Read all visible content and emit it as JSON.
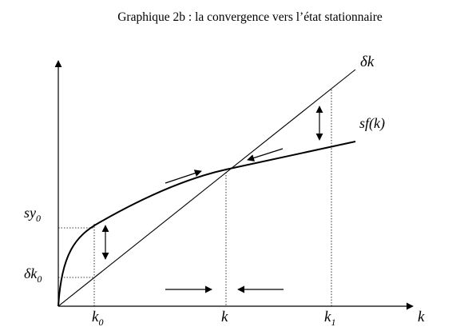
{
  "title": "Graphique 2b : la convergence vers l’état stationnaire",
  "labels": {
    "depreciation_line": {
      "main": "δk"
    },
    "savings_curve": {
      "main": "sf(k)"
    },
    "x_axis": {
      "main": "k"
    },
    "sy0": {
      "main": "sy",
      "sub": "0"
    },
    "dk0": {
      "main": "δk",
      "sub": "0"
    },
    "k0": {
      "main": "k",
      "sub": "0"
    },
    "k_star": {
      "main": "k"
    },
    "k1": {
      "main": "k",
      "sub": "1"
    }
  }
}
